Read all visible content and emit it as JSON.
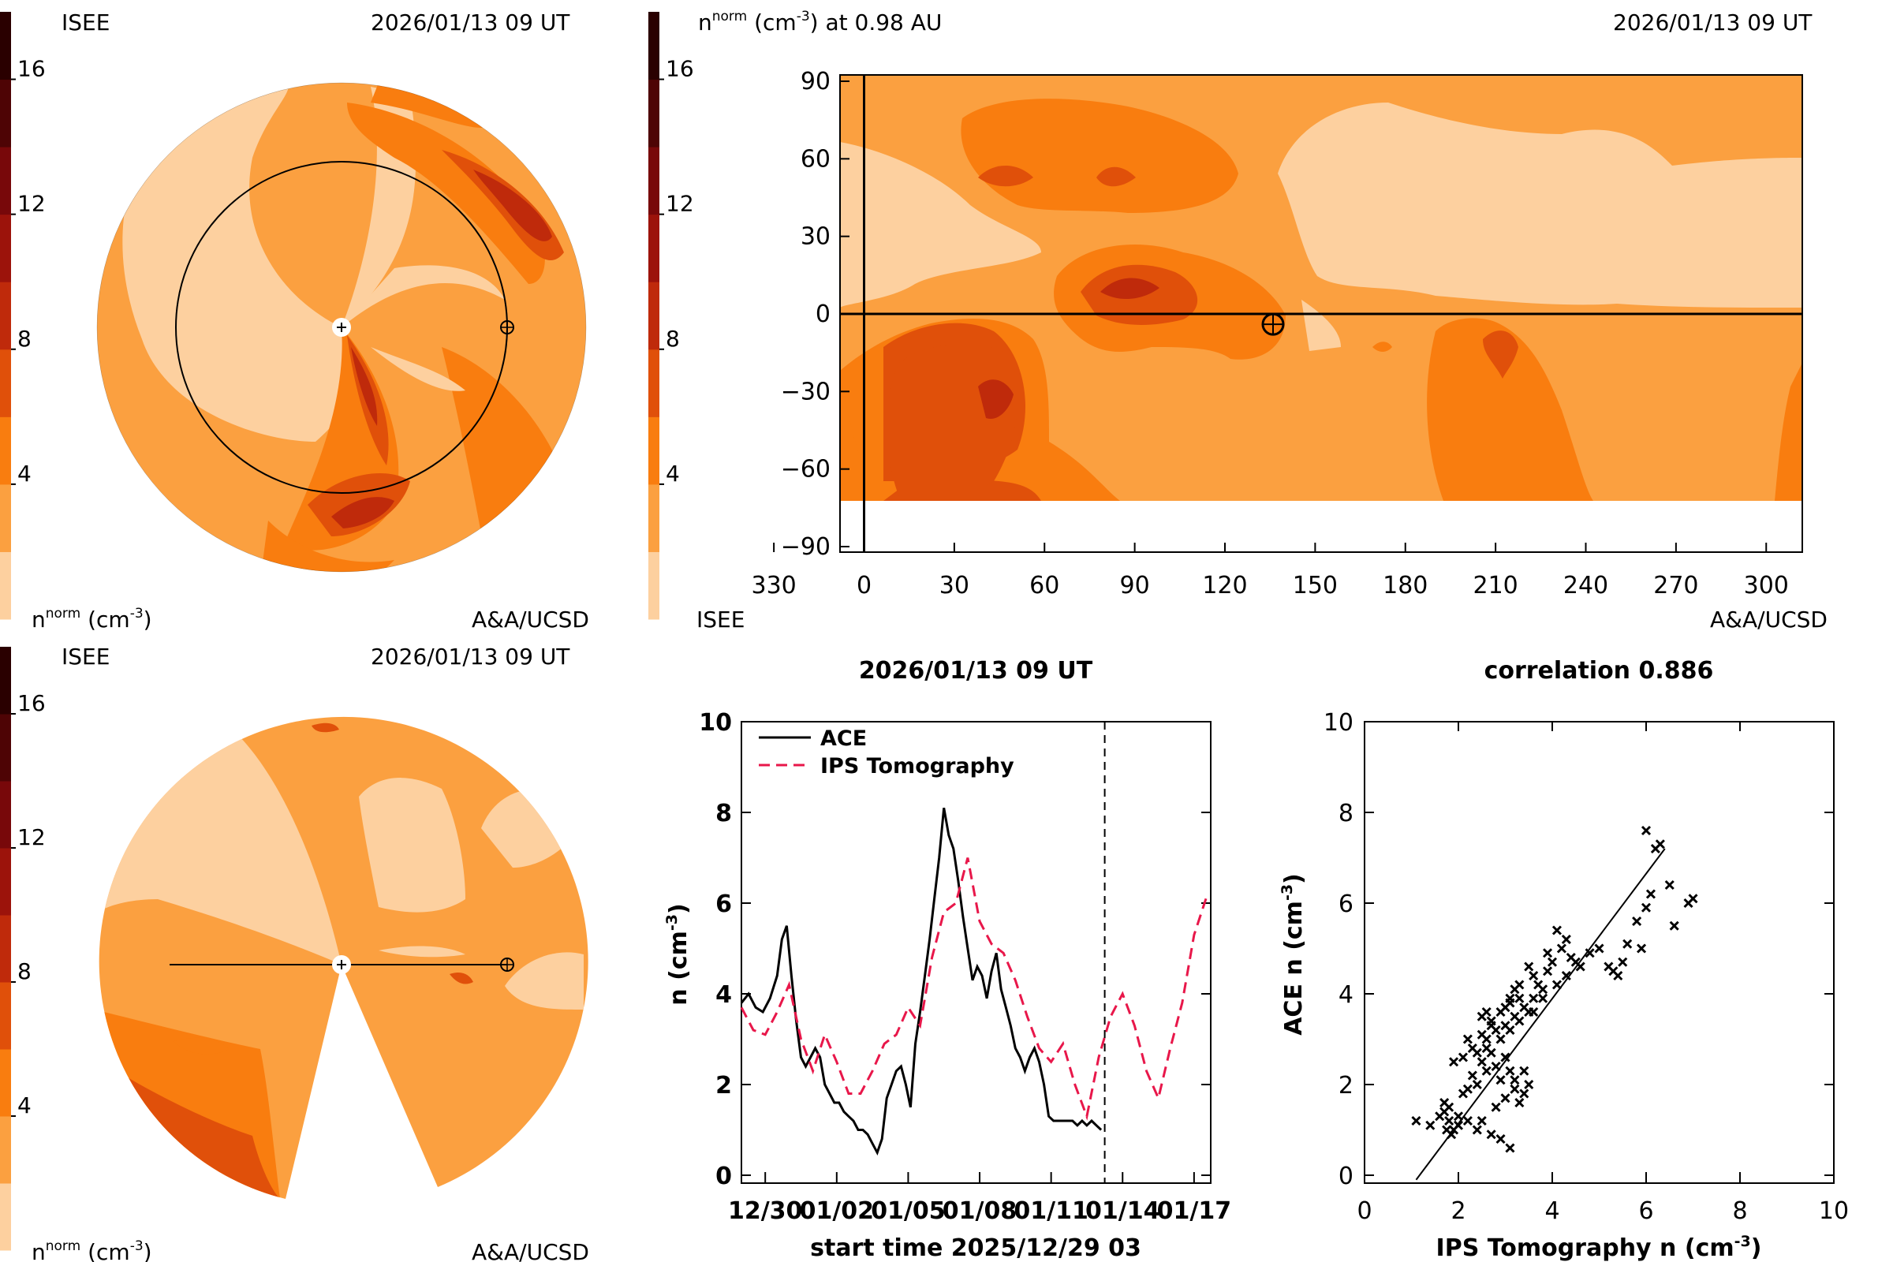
{
  "colors": {
    "levels": [
      "#fdd09f",
      "#fba040",
      "#f97d0f",
      "#e0500a",
      "#bf2a0b",
      "#9c130b",
      "#78080a",
      "#4e0405",
      "#2a0000"
    ],
    "ink": "#000000",
    "ace_line": "#000000",
    "ips_line": "#e8174a"
  },
  "colorbar_left": {
    "ticks": [
      "4",
      "8",
      "12",
      "16"
    ],
    "tick_values": [
      4,
      8,
      12,
      16
    ],
    "vmax": 18
  },
  "colorbar_mid": {
    "ticks": [
      "4",
      "8",
      "12",
      "16"
    ],
    "tick_values": [
      4,
      8,
      12,
      16
    ],
    "vmax": 18
  },
  "colorbar_left2": {
    "ticks": [
      "4",
      "8",
      "12",
      "16"
    ],
    "tick_values": [
      4,
      8,
      12,
      16
    ],
    "vmax": 18
  },
  "panel_top_left": {
    "label_tl": "ISEE",
    "label_tr": "2026/01/13 09 UT",
    "label_bl": "n",
    "label_bl_sup": "norm",
    "label_bl_rest": " (cm",
    "label_bl_sup2": "-3",
    "label_bl_end": ")",
    "label_br": "A&A/UCSD",
    "icon": "heliospheric-ecliptic-view"
  },
  "panel_bottom_left": {
    "label_tl": "ISEE",
    "label_tr": "2026/01/13 09 UT",
    "label_bl": "n",
    "label_bl_sup": "norm",
    "label_bl_rest": " (cm",
    "label_bl_sup2": "-3",
    "label_bl_end": ")",
    "label_br": "A&A/UCSD",
    "icon": "heliospheric-meridional-view"
  },
  "panel_top_right": {
    "title_n": "n",
    "title_sup": "norm",
    "title_rest": " (cm",
    "title_sup2": "-3",
    "title_end": ") at 0.98 AU",
    "date": "2026/01/13 09 UT",
    "label_bl": "ISEE",
    "label_br": "A&A/UCSD"
  },
  "chart_data": [
    {
      "type": "heatmap",
      "title": "n^norm (cm^-3) at 0.98 AU",
      "x_ticks": [
        "330",
        "0",
        "30",
        "60",
        "90",
        "120",
        "150",
        "180",
        "210",
        "240",
        "270",
        "300"
      ],
      "x_tick_values": [
        330,
        0,
        30,
        60,
        90,
        120,
        150,
        180,
        210,
        240,
        270,
        300
      ],
      "y_ticks": [
        "90",
        "60",
        "30",
        "0",
        "−30",
        "−60",
        "−90"
      ],
      "y_tick_values": [
        90,
        60,
        30,
        0,
        -30,
        -60,
        -90
      ],
      "ylim": [
        -90,
        90
      ],
      "earth_longitude": 136,
      "earth_latitude": -4,
      "crosshair_longitude": 0,
      "crosshair_latitude": 0,
      "data_latitude_min": -70
    },
    {
      "type": "line",
      "title": "2026/01/13 09 UT",
      "xlabel": "start time 2025/12/29 03",
      "ylabel_n": "n (cm",
      "ylabel_sup": "-3",
      "ylabel_end": ")",
      "x_ticks": [
        "12/30",
        "01/02",
        "01/05",
        "01/08",
        "01/11",
        "01/14",
        "01/17"
      ],
      "x_tick_days": [
        1,
        4,
        7,
        10,
        13,
        16,
        19
      ],
      "xlim": [
        0,
        19.7
      ],
      "ylim": [
        0,
        10
      ],
      "y_ticks": [
        "0",
        "2",
        "4",
        "6",
        "8",
        "10"
      ],
      "y_tick_values": [
        0,
        2,
        4,
        6,
        8,
        10
      ],
      "current_time_day": 15.25,
      "series": [
        {
          "name": "ACE",
          "x": [
            0,
            0.3,
            0.6,
            0.9,
            1.2,
            1.5,
            1.7,
            1.9,
            2.1,
            2.3,
            2.5,
            2.7,
            2.9,
            3.1,
            3.3,
            3.5,
            3.7,
            3.9,
            4.1,
            4.3,
            4.5,
            4.7,
            4.9,
            5.1,
            5.3,
            5.5,
            5.7,
            5.9,
            6.1,
            6.3,
            6.5,
            6.7,
            6.9,
            7.1,
            7.3,
            7.5,
            7.7,
            7.9,
            8.1,
            8.3,
            8.5,
            8.7,
            8.9,
            9.1,
            9.3,
            9.5,
            9.7,
            9.9,
            10.1,
            10.3,
            10.5,
            10.7,
            10.9,
            11.1,
            11.3,
            11.5,
            11.7,
            11.9,
            12.1,
            12.3,
            12.5,
            12.7,
            12.9,
            13.1,
            13.3,
            13.5,
            13.7,
            13.9,
            14.1,
            14.3,
            14.5,
            14.7,
            14.9,
            15.1
          ],
          "y": [
            3.8,
            4.0,
            3.7,
            3.6,
            3.9,
            4.4,
            5.2,
            5.5,
            4.4,
            3.4,
            2.6,
            2.4,
            2.6,
            2.8,
            2.6,
            2.0,
            1.8,
            1.6,
            1.6,
            1.4,
            1.3,
            1.2,
            1.0,
            1.0,
            0.9,
            0.7,
            0.5,
            0.8,
            1.7,
            2.0,
            2.3,
            2.4,
            2.0,
            1.5,
            2.9,
            3.6,
            4.4,
            5.2,
            6.1,
            7.0,
            8.1,
            7.5,
            7.2,
            6.5,
            5.7,
            5.0,
            4.3,
            4.6,
            4.4,
            3.9,
            4.5,
            4.9,
            4.1,
            3.7,
            3.3,
            2.8,
            2.6,
            2.3,
            2.6,
            2.8,
            2.5,
            2.0,
            1.3,
            1.2,
            1.2,
            1.2,
            1.2,
            1.2,
            1.1,
            1.2,
            1.1,
            1.2,
            1.1,
            1.0
          ]
        },
        {
          "name": "IPS Tomography",
          "x": [
            0,
            0.5,
            1.0,
            1.5,
            2.0,
            2.5,
            3.0,
            3.5,
            4.0,
            4.5,
            5.0,
            5.5,
            6.0,
            6.5,
            7.0,
            7.5,
            8.0,
            8.5,
            9.0,
            9.5,
            10.0,
            10.5,
            11.0,
            11.5,
            12.0,
            12.5,
            13.0,
            13.5,
            14.0,
            14.5,
            15.0,
            15.5,
            16.0,
            16.5,
            17.0,
            17.5,
            18.0,
            18.5,
            19.0,
            19.5
          ],
          "y": [
            3.7,
            3.2,
            3.1,
            3.6,
            4.2,
            3.0,
            2.3,
            3.1,
            2.5,
            1.8,
            1.8,
            2.3,
            2.9,
            3.1,
            3.7,
            3.3,
            4.8,
            5.8,
            6.0,
            7.0,
            5.6,
            5.1,
            4.9,
            4.3,
            3.5,
            2.8,
            2.5,
            2.9,
            2.0,
            1.3,
            2.6,
            3.5,
            4.0,
            3.3,
            2.3,
            1.7,
            2.8,
            3.8,
            5.3,
            6.1
          ]
        }
      ]
    },
    {
      "type": "scatter",
      "title": "correlation 0.886",
      "xlabel_main": "IPS Tomography n (cm",
      "xlabel_sup": "-3",
      "xlabel_end": ")",
      "ylabel_main": "ACE n (cm",
      "ylabel_sup": "-3",
      "ylabel_end": ")",
      "xlim": [
        0,
        10
      ],
      "ylim": [
        0,
        10
      ],
      "x_ticks": [
        "0",
        "2",
        "4",
        "6",
        "8",
        "10"
      ],
      "y_ticks": [
        "0",
        "2",
        "4",
        "6",
        "8",
        "10"
      ],
      "tick_values": [
        0,
        2,
        4,
        6,
        8,
        10
      ],
      "fit_line": {
        "x": [
          1.1,
          6.4
        ],
        "y": [
          -0.1,
          7.2
        ]
      },
      "points_x": [
        1.1,
        1.4,
        1.6,
        1.7,
        1.75,
        1.8,
        1.85,
        1.9,
        2.0,
        2.1,
        2.2,
        2.3,
        2.4,
        2.5,
        2.6,
        2.7,
        2.8,
        2.9,
        3.0,
        3.1,
        3.2,
        1.7,
        1.8,
        2.0,
        2.2,
        2.4,
        2.5,
        2.7,
        2.9,
        3.1,
        3.3,
        3.4,
        3.5,
        2.6,
        2.8,
        3.0,
        3.2,
        3.4,
        3.6,
        3.8,
        2.5,
        2.7,
        2.9,
        3.1,
        3.3,
        3.5,
        3.7,
        3.9,
        4.0,
        4.2,
        4.4,
        4.6,
        2.4,
        2.6,
        2.9,
        3.1,
        3.3,
        3.6,
        3.8,
        4.1,
        4.3,
        4.5,
        4.8,
        5.0,
        5.2,
        5.4,
        5.6,
        5.8,
        6.0,
        5.3,
        5.5,
        5.9,
        6.1,
        6.2,
        6.3,
        6.0,
        6.5,
        6.6,
        6.9,
        7.0,
        2.8,
        3.0,
        3.2,
        3.4,
        2.1,
        2.3,
        2.5,
        2.7,
        3.0,
        3.2,
        3.6,
        3.9,
        4.1,
        4.3,
        1.9,
        2.2,
        2.6,
        3.1,
        3.3,
        3.5
      ],
      "points_y": [
        1.2,
        1.1,
        1.3,
        1.6,
        1.0,
        1.2,
        0.9,
        1.0,
        1.1,
        1.8,
        1.9,
        2.2,
        2.0,
        2.5,
        2.3,
        2.7,
        2.4,
        2.1,
        2.6,
        2.3,
        1.9,
        1.4,
        1.5,
        1.3,
        1.2,
        1.0,
        1.2,
        0.9,
        0.8,
        0.6,
        1.6,
        1.8,
        2.0,
        3.0,
        3.2,
        3.3,
        3.5,
        3.7,
        3.9,
        4.1,
        3.5,
        3.3,
        3.6,
        3.8,
        3.9,
        3.6,
        4.2,
        4.5,
        4.7,
        5.0,
        4.8,
        4.6,
        2.7,
        2.8,
        3.0,
        3.2,
        3.4,
        3.6,
        3.9,
        4.2,
        4.4,
        4.7,
        4.9,
        5.0,
        4.6,
        4.4,
        5.1,
        5.6,
        5.9,
        4.5,
        4.7,
        5.0,
        6.2,
        7.2,
        7.3,
        7.6,
        6.4,
        5.5,
        6.0,
        6.1,
        1.5,
        1.7,
        2.1,
        2.3,
        2.6,
        2.8,
        3.1,
        3.4,
        3.7,
        4.1,
        4.4,
        4.9,
        5.4,
        5.2,
        2.5,
        3.0,
        3.6,
        3.9,
        4.2,
        4.6
      ]
    }
  ],
  "line_chart_legend": {
    "ace": "ACE",
    "ips": "IPS Tomography"
  }
}
